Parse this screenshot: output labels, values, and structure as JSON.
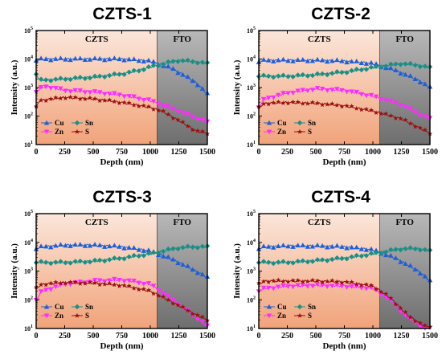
{
  "colors": {
    "Cu": "#1f5fd6",
    "Sn": "#1a8f86",
    "Zn": "#ff2bff",
    "S": "#9b1111",
    "czts_region": "#f4c3a8",
    "fto_region": "#9a9a9a"
  },
  "chart_data": [
    {
      "type": "line",
      "title": "CZTS-1",
      "xlabel": "Depth (nm)",
      "ylabel": "Intensity (a.u.)",
      "xlim": [
        0,
        1500
      ],
      "ylim": [
        10,
        100000
      ],
      "yscale": "log",
      "xticks": [
        0,
        250,
        500,
        750,
        1000,
        1250,
        1500
      ],
      "yticks": [
        10,
        100,
        1000,
        10000,
        100000
      ],
      "regions": [
        {
          "label": "CZTS",
          "x": [
            0,
            1060
          ],
          "color": "#f4c3a8"
        },
        {
          "label": "FTO",
          "x": [
            1060,
            1500
          ],
          "color": "#9a9a9a"
        }
      ],
      "legend": {
        "position": "bottom-left",
        "columns": 2
      },
      "series": [
        {
          "name": "Cu",
          "marker": "triangle-up",
          "color": "#1f5fd6",
          "x": [
            0,
            50,
            250,
            500,
            750,
            1000,
            1200,
            1400,
            1500
          ],
          "y": [
            9000,
            10000,
            10000,
            10000,
            10000,
            8500,
            4500,
            1500,
            600
          ]
        },
        {
          "name": "Sn",
          "marker": "diamond",
          "color": "#1a8f86",
          "x": [
            0,
            30,
            250,
            500,
            750,
            900,
            1050,
            1250,
            1400,
            1500
          ],
          "y": [
            3000,
            1800,
            2000,
            2300,
            3000,
            4000,
            6000,
            9000,
            8000,
            7000
          ]
        },
        {
          "name": "Zn",
          "marker": "triangle-down",
          "color": "#ff2bff",
          "x": [
            0,
            50,
            100,
            250,
            500,
            750,
            1000,
            1100,
            1250,
            1500
          ],
          "y": [
            700,
            1000,
            1100,
            800,
            700,
            550,
            350,
            250,
            150,
            60
          ]
        },
        {
          "name": "S",
          "marker": "star",
          "color": "#9b1111",
          "x": [
            0,
            25,
            250,
            500,
            750,
            1000,
            1100,
            1250,
            1400,
            1500
          ],
          "y": [
            200,
            350,
            450,
            400,
            300,
            200,
            150,
            70,
            30,
            25
          ]
        }
      ]
    },
    {
      "type": "line",
      "title": "CZTS-2",
      "xlabel": "Depth (nm)",
      "ylabel": "Intensity (a.u.)",
      "xlim": [
        0,
        1500
      ],
      "ylim": [
        10,
        100000
      ],
      "yscale": "log",
      "xticks": [
        0,
        250,
        500,
        750,
        1000,
        1250,
        1500
      ],
      "yticks": [
        10,
        100,
        1000,
        10000,
        100000
      ],
      "regions": [
        {
          "label": "CZTS",
          "x": [
            0,
            1060
          ],
          "color": "#f4c3a8"
        },
        {
          "label": "FTO",
          "x": [
            1060,
            1500
          ],
          "color": "#9a9a9a"
        }
      ],
      "legend": {
        "position": "bottom-left",
        "columns": 2
      },
      "series": [
        {
          "name": "Cu",
          "marker": "triangle-up",
          "color": "#1f5fd6",
          "x": [
            0,
            50,
            250,
            500,
            750,
            1000,
            1200,
            1400,
            1500
          ],
          "y": [
            8000,
            9000,
            9000,
            9000,
            8500,
            7000,
            4000,
            1800,
            1000
          ]
        },
        {
          "name": "Sn",
          "marker": "diamond",
          "color": "#1a8f86",
          "x": [
            0,
            30,
            250,
            500,
            750,
            1000,
            1250,
            1400,
            1500
          ],
          "y": [
            2500,
            2500,
            2500,
            2800,
            3500,
            5000,
            7000,
            6000,
            5000
          ]
        },
        {
          "name": "Zn",
          "marker": "triangle-down",
          "color": "#ff2bff",
          "x": [
            0,
            50,
            250,
            500,
            750,
            1000,
            1250,
            1400,
            1500
          ],
          "y": [
            200,
            400,
            650,
            900,
            800,
            500,
            250,
            120,
            80
          ]
        },
        {
          "name": "S",
          "marker": "star",
          "color": "#9b1111",
          "x": [
            0,
            50,
            250,
            500,
            750,
            1000,
            1250,
            1400,
            1500
          ],
          "y": [
            200,
            280,
            300,
            280,
            230,
            150,
            80,
            40,
            25
          ]
        }
      ]
    },
    {
      "type": "line",
      "title": "CZTS-3",
      "xlabel": "Depth (nm)",
      "ylabel": "Intensity (a.u.)",
      "xlim": [
        0,
        1500
      ],
      "ylim": [
        10,
        100000
      ],
      "yscale": "log",
      "xticks": [
        0,
        250,
        500,
        750,
        1000,
        1250,
        1500
      ],
      "yticks": [
        10,
        100,
        1000,
        10000,
        100000
      ],
      "regions": [
        {
          "label": "CZTS",
          "x": [
            0,
            1060
          ],
          "color": "#f4c3a8"
        },
        {
          "label": "FTO",
          "x": [
            1060,
            1500
          ],
          "color": "#9a9a9a"
        }
      ],
      "legend": {
        "position": "bottom-left",
        "columns": 2
      },
      "series": [
        {
          "name": "Cu",
          "marker": "triangle-up",
          "color": "#1f5fd6",
          "x": [
            0,
            50,
            250,
            500,
            750,
            1000,
            1200,
            1400,
            1500
          ],
          "y": [
            6000,
            7000,
            8000,
            8000,
            7000,
            5000,
            2500,
            1000,
            600
          ]
        },
        {
          "name": "Sn",
          "marker": "diamond",
          "color": "#1a8f86",
          "x": [
            0,
            30,
            250,
            500,
            750,
            1000,
            1250,
            1400,
            1500
          ],
          "y": [
            2000,
            2000,
            2000,
            2200,
            2800,
            4000,
            6500,
            7000,
            7000
          ]
        },
        {
          "name": "Zn",
          "marker": "triangle-down",
          "color": "#ff2bff",
          "x": [
            0,
            50,
            250,
            500,
            750,
            1000,
            1200,
            1400,
            1500
          ],
          "y": [
            100,
            200,
            350,
            450,
            500,
            350,
            100,
            25,
            12
          ]
        },
        {
          "name": "S",
          "marker": "star",
          "color": "#9b1111",
          "x": [
            0,
            50,
            250,
            500,
            750,
            1000,
            1200,
            1400,
            1500
          ],
          "y": [
            250,
            350,
            400,
            380,
            320,
            200,
            80,
            30,
            20
          ]
        }
      ]
    },
    {
      "type": "line",
      "title": "CZTS-4",
      "xlabel": "Depth (nm)",
      "ylabel": "Intensity (a.u.)",
      "xlim": [
        0,
        1500
      ],
      "ylim": [
        10,
        100000
      ],
      "yscale": "log",
      "xticks": [
        0,
        250,
        500,
        750,
        1000,
        1250,
        1500
      ],
      "yticks": [
        10,
        100,
        1000,
        10000,
        100000
      ],
      "regions": [
        {
          "label": "CZTS",
          "x": [
            0,
            1060
          ],
          "color": "#f4c3a8"
        },
        {
          "label": "FTO",
          "x": [
            1060,
            1500
          ],
          "color": "#9a9a9a"
        }
      ],
      "legend": {
        "position": "bottom-left",
        "columns": 2
      },
      "series": [
        {
          "name": "Cu",
          "marker": "triangle-up",
          "color": "#1f5fd6",
          "x": [
            0,
            50,
            250,
            500,
            750,
            1000,
            1200,
            1400,
            1500
          ],
          "y": [
            6000,
            7000,
            7500,
            7500,
            7000,
            5500,
            2800,
            1000,
            450
          ]
        },
        {
          "name": "Sn",
          "marker": "diamond",
          "color": "#1a8f86",
          "x": [
            0,
            30,
            250,
            500,
            750,
            1000,
            1250,
            1400,
            1500
          ],
          "y": [
            2000,
            2000,
            2000,
            2300,
            2800,
            4000,
            6000,
            6000,
            5000
          ]
        },
        {
          "name": "Zn",
          "marker": "triangle-down",
          "color": "#ff2bff",
          "x": [
            0,
            50,
            250,
            500,
            750,
            1000,
            1150,
            1300,
            1450
          ],
          "y": [
            200,
            250,
            300,
            320,
            300,
            250,
            100,
            25,
            10
          ]
        },
        {
          "name": "S",
          "marker": "star",
          "color": "#9b1111",
          "x": [
            0,
            50,
            250,
            500,
            750,
            1000,
            1150,
            1300,
            1450
          ],
          "y": [
            350,
            450,
            450,
            450,
            420,
            300,
            120,
            30,
            12
          ]
        }
      ]
    }
  ]
}
